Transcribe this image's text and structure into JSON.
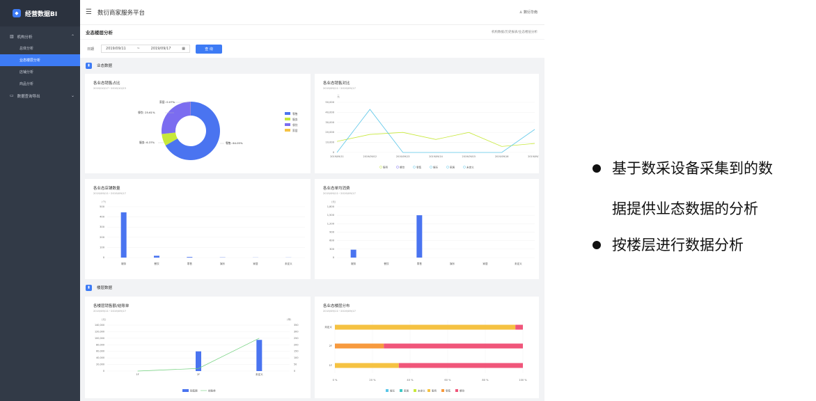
{
  "app": {
    "logo": "经营数据BI",
    "title": "数衍商家服务平台",
    "user": "数衍华南"
  },
  "sidebar": {
    "group1": "机构分析",
    "items": [
      "总体分析",
      "业态楼层分析",
      "店铺分析",
      "商品分析"
    ],
    "group2": "数据查询导出"
  },
  "page": {
    "title": "业态楼层分析",
    "breadcrumb": "机构数据/历史报表/业态楼层分析"
  },
  "filter": {
    "label": "日期",
    "start": "2019/09/11",
    "end": "2019/09/17",
    "query": "查 询"
  },
  "sections": {
    "s1": "业态数据",
    "s2": "楼层数据"
  },
  "colors": {
    "accent": "#3d7bf5",
    "blue": "#4a74f0",
    "lime": "#c7e83a",
    "purple": "#7b6cf0",
    "amber": "#f5c242",
    "teal": "#5bc6e8",
    "green": "#6ed07a",
    "orange": "#f79a3e",
    "pink": "#f0567a",
    "cyan": "#3ec9c6"
  },
  "donut": {
    "title": "各业态销售占比",
    "subtitle": "2019/10/17~2019/10/23",
    "labels": {
      "a": "家居: 0.07%",
      "b": "餐饮: 25.61%",
      "c": "服务: 6.37%",
      "d": "零售: 64.05%"
    },
    "legend": [
      "零售",
      "服务",
      "餐饮",
      "家居"
    ]
  },
  "linec": {
    "title": "各业态销售对比",
    "subtitle": "2019/09/11~2019/09/17",
    "unit": "元",
    "yticks": [
      "50,000",
      "40,000",
      "30,000",
      "20,000",
      "10,000",
      "0"
    ],
    "xticks": [
      "2019/09/11",
      "2019/09/12",
      "2019/09/13",
      "2019/09/14",
      "2019/09/15",
      "2019/09/16",
      "2019/09/17"
    ],
    "legend": [
      "服务",
      "餐饮",
      "零售",
      "娱乐",
      "家居",
      "未定义"
    ]
  },
  "stores": {
    "title": "各业态店铺数量",
    "subtitle": "2019/09/11~2019/09/17",
    "unit": "(个)",
    "yticks": [
      "500",
      "400",
      "300",
      "200",
      "100",
      "0"
    ],
    "cats": [
      "服务",
      "餐饮",
      "零售",
      "娱乐",
      "家居",
      "未定义"
    ]
  },
  "avg": {
    "title": "各业态单均消费",
    "subtitle": "2019/09/11~2019/09/17",
    "unit": "(元)",
    "yticks": [
      "1,800",
      "1,500",
      "1,200",
      "900",
      "600",
      "300",
      "0"
    ],
    "cats": [
      "服务",
      "餐饮",
      "零售",
      "娱乐",
      "家居",
      "未定义"
    ]
  },
  "floorsales": {
    "title": "各楼层销售额/结账单",
    "subtitle": "2019/09/11~2019/09/17",
    "unitL": "(元)",
    "unitR": "(单)",
    "ylticks": [
      "140,000",
      "120,000",
      "100,000",
      "80,000",
      "60,000",
      "40,000",
      "20,000",
      "0"
    ],
    "yrticks": [
      "350",
      "300",
      "250",
      "200",
      "150",
      "100",
      "50",
      "0"
    ],
    "cats": [
      "1F",
      "2F",
      "未定义"
    ],
    "legend": [
      "销售额",
      "结账单"
    ]
  },
  "floordist": {
    "title": "各业态楼层分布",
    "subtitle": "2019/09/11~2019/09/17",
    "cats": [
      "未定义",
      "2F",
      "1F"
    ],
    "xticks": [
      "0 %",
      "20 %",
      "40 %",
      "60 %",
      "80 %",
      "100 %"
    ],
    "legend": [
      "娱乐",
      "家居",
      "未定义",
      "服务",
      "零售",
      "餐饮"
    ]
  },
  "bullets": {
    "b1a": "基于数采设备采集到的数",
    "b1b": "据提供业态数据的分析",
    "b2": "按楼层进行数据分析"
  },
  "chart_data": [
    {
      "type": "pie",
      "title": "各业态销售占比",
      "labels": [
        "零售",
        "服务",
        "餐饮",
        "家居"
      ],
      "values": [
        64.05,
        6.37,
        25.61,
        0.07
      ]
    },
    {
      "type": "line",
      "title": "各业态销售对比",
      "x": [
        "2019/09/11",
        "2019/09/12",
        "2019/09/13",
        "2019/09/14",
        "2019/09/15",
        "2019/09/16",
        "2019/09/17"
      ],
      "series": [
        {
          "name": "服务",
          "values": [
            11000,
            18000,
            20000,
            13000,
            20000,
            6000,
            9000
          ]
        },
        {
          "name": "零售",
          "values": [
            0,
            43000,
            0,
            0,
            0,
            0,
            23000
          ]
        }
      ],
      "ylim": [
        0,
        50000
      ]
    },
    {
      "type": "bar",
      "title": "各业态店铺数量",
      "categories": [
        "服务",
        "餐饮",
        "零售",
        "娱乐",
        "家居",
        "未定义"
      ],
      "values": [
        445,
        18,
        6,
        2,
        1,
        1
      ],
      "ylim": [
        0,
        500
      ]
    },
    {
      "type": "bar",
      "title": "各业态单均消费",
      "categories": [
        "服务",
        "餐饮",
        "零售",
        "娱乐",
        "家居",
        "未定义"
      ],
      "values": [
        280,
        0,
        1500,
        0,
        0,
        0
      ],
      "ylim": [
        0,
        1800
      ]
    },
    {
      "type": "bar",
      "title": "各楼层销售额/结账单",
      "categories": [
        "1F",
        "2F",
        "未定义"
      ],
      "series": [
        {
          "name": "销售额",
          "values": [
            0,
            60000,
            95000
          ]
        },
        {
          "name": "结账单",
          "values": [
            0,
            20,
            250
          ]
        }
      ]
    },
    {
      "type": "bar",
      "title": "各业态楼层分布",
      "categories": [
        "未定义",
        "2F",
        "1F"
      ],
      "series": [
        {
          "name": "服务",
          "values": [
            96,
            0,
            34
          ]
        },
        {
          "name": "零售",
          "values": [
            0,
            26,
            0
          ]
        },
        {
          "name": "餐饮",
          "values": [
            4,
            74,
            66
          ]
        }
      ]
    }
  ]
}
